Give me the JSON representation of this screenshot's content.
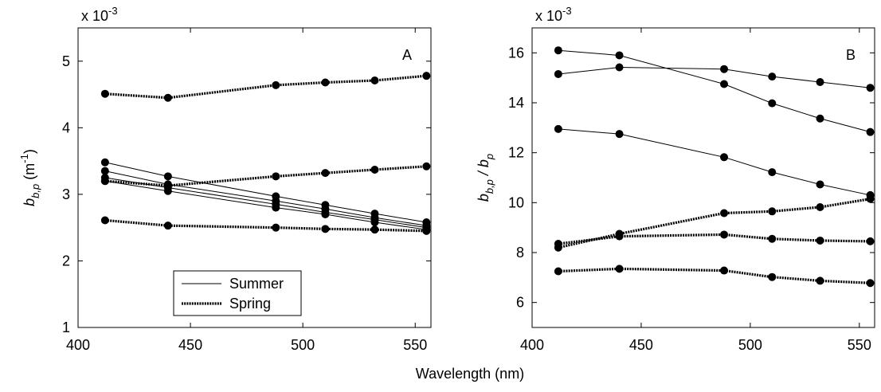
{
  "xlabel": "Wavelength (nm)",
  "chart_data": [
    {
      "type": "line",
      "panel_label": "A",
      "ylabel": [
        "b",
        "b,p",
        " (m",
        "-1",
        ")"
      ],
      "y_multiplier": [
        "x 10",
        "-3"
      ],
      "x": [
        412,
        440,
        488,
        510,
        532,
        555
      ],
      "xlim": [
        400,
        557
      ],
      "xticks": [
        400,
        450,
        500,
        550
      ],
      "ylim": [
        1,
        5.5
      ],
      "yticks": [
        1,
        2,
        3,
        4,
        5
      ],
      "legend": [
        {
          "name": "Summer",
          "style": "solid"
        },
        {
          "name": "Spring",
          "style": "dotted"
        }
      ],
      "legend_position": "lower-left",
      "color": "#000000",
      "series": [
        {
          "style": "solid",
          "values": [
            3.48,
            3.27,
            2.97,
            2.84,
            2.71,
            2.58
          ]
        },
        {
          "style": "solid",
          "values": [
            3.35,
            3.15,
            2.9,
            2.78,
            2.65,
            2.53
          ]
        },
        {
          "style": "solid",
          "values": [
            3.25,
            3.1,
            2.85,
            2.73,
            2.62,
            2.5
          ]
        },
        {
          "style": "solid",
          "values": [
            3.2,
            3.05,
            2.8,
            2.7,
            2.58,
            2.47
          ]
        },
        {
          "style": "dotted",
          "values": [
            4.51,
            4.45,
            4.64,
            4.68,
            4.71,
            4.78
          ]
        },
        {
          "style": "dotted",
          "values": [
            3.2,
            3.13,
            3.27,
            3.32,
            3.37,
            3.42
          ]
        },
        {
          "style": "dotted",
          "values": [
            2.61,
            2.53,
            2.5,
            2.48,
            2.47,
            2.45
          ]
        }
      ]
    },
    {
      "type": "line",
      "panel_label": "B",
      "ylabel": [
        "b",
        "b,p",
        " / b",
        "p"
      ],
      "y_multiplier": [
        "x 10",
        "-3"
      ],
      "x": [
        412,
        440,
        488,
        510,
        532,
        555
      ],
      "xlim": [
        400,
        557
      ],
      "xticks": [
        400,
        450,
        500,
        550
      ],
      "ylim": [
        5,
        17
      ],
      "yticks": [
        6,
        8,
        10,
        12,
        14,
        16
      ],
      "color": "#000000",
      "series": [
        {
          "style": "solid",
          "values": [
            16.1,
            15.9,
            14.75,
            13.98,
            13.37,
            12.83
          ]
        },
        {
          "style": "solid",
          "values": [
            15.15,
            15.42,
            15.35,
            15.05,
            14.83,
            14.6
          ]
        },
        {
          "style": "solid",
          "values": [
            12.95,
            12.75,
            11.82,
            11.22,
            10.73,
            10.3
          ]
        },
        {
          "style": "dotted",
          "values": [
            8.2,
            8.75,
            9.58,
            9.65,
            9.82,
            10.15
          ]
        },
        {
          "style": "dotted",
          "values": [
            8.35,
            8.65,
            8.72,
            8.55,
            8.48,
            8.45
          ]
        },
        {
          "style": "dotted",
          "values": [
            7.25,
            7.35,
            7.28,
            7.02,
            6.87,
            6.78
          ]
        }
      ]
    }
  ]
}
